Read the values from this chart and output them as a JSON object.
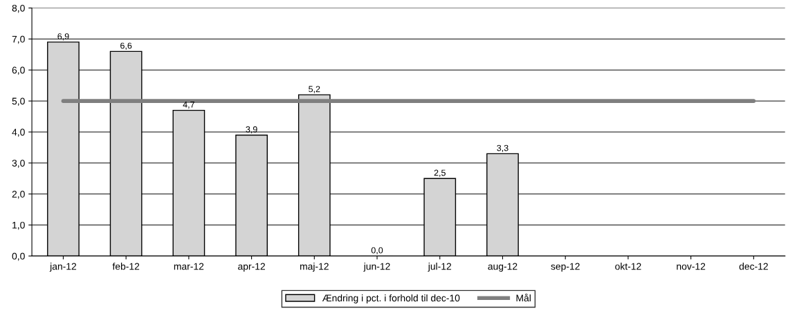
{
  "chart_data": {
    "type": "bar",
    "categories": [
      "jan-12",
      "feb-12",
      "mar-12",
      "apr-12",
      "maj-12",
      "jun-12",
      "jul-12",
      "aug-12",
      "sep-12",
      "okt-12",
      "nov-12",
      "dec-12"
    ],
    "series": [
      {
        "name": "Ændring i pct. i forhold til dec-10",
        "type": "bar",
        "color": "#d4d4d4",
        "values": [
          6.9,
          6.6,
          4.7,
          3.9,
          5.2,
          0.0,
          2.5,
          3.3,
          null,
          null,
          null,
          null
        ],
        "value_labels": [
          "6,9",
          "6,6",
          "4,7",
          "3,9",
          "5,2",
          "0,0",
          "2,5",
          "3,3",
          null,
          null,
          null,
          null
        ]
      },
      {
        "name": "Mål",
        "type": "line",
        "color": "#7f7f7f",
        "values": [
          5.0,
          5.0,
          5.0,
          5.0,
          5.0,
          5.0,
          5.0,
          5.0,
          5.0,
          5.0,
          5.0,
          5.0
        ]
      }
    ],
    "ylim": [
      0,
      8
    ],
    "yticks": [
      {
        "value": 0,
        "label": "0,0"
      },
      {
        "value": 1,
        "label": "1,0"
      },
      {
        "value": 2,
        "label": "2,0"
      },
      {
        "value": 3,
        "label": "3,0"
      },
      {
        "value": 4,
        "label": "4,0"
      },
      {
        "value": 5,
        "label": "5,0"
      },
      {
        "value": 6,
        "label": "6,0"
      },
      {
        "value": 7,
        "label": "7,0"
      },
      {
        "value": 8,
        "label": "8,0"
      }
    ],
    "grid": "y",
    "legend": "bottom"
  }
}
